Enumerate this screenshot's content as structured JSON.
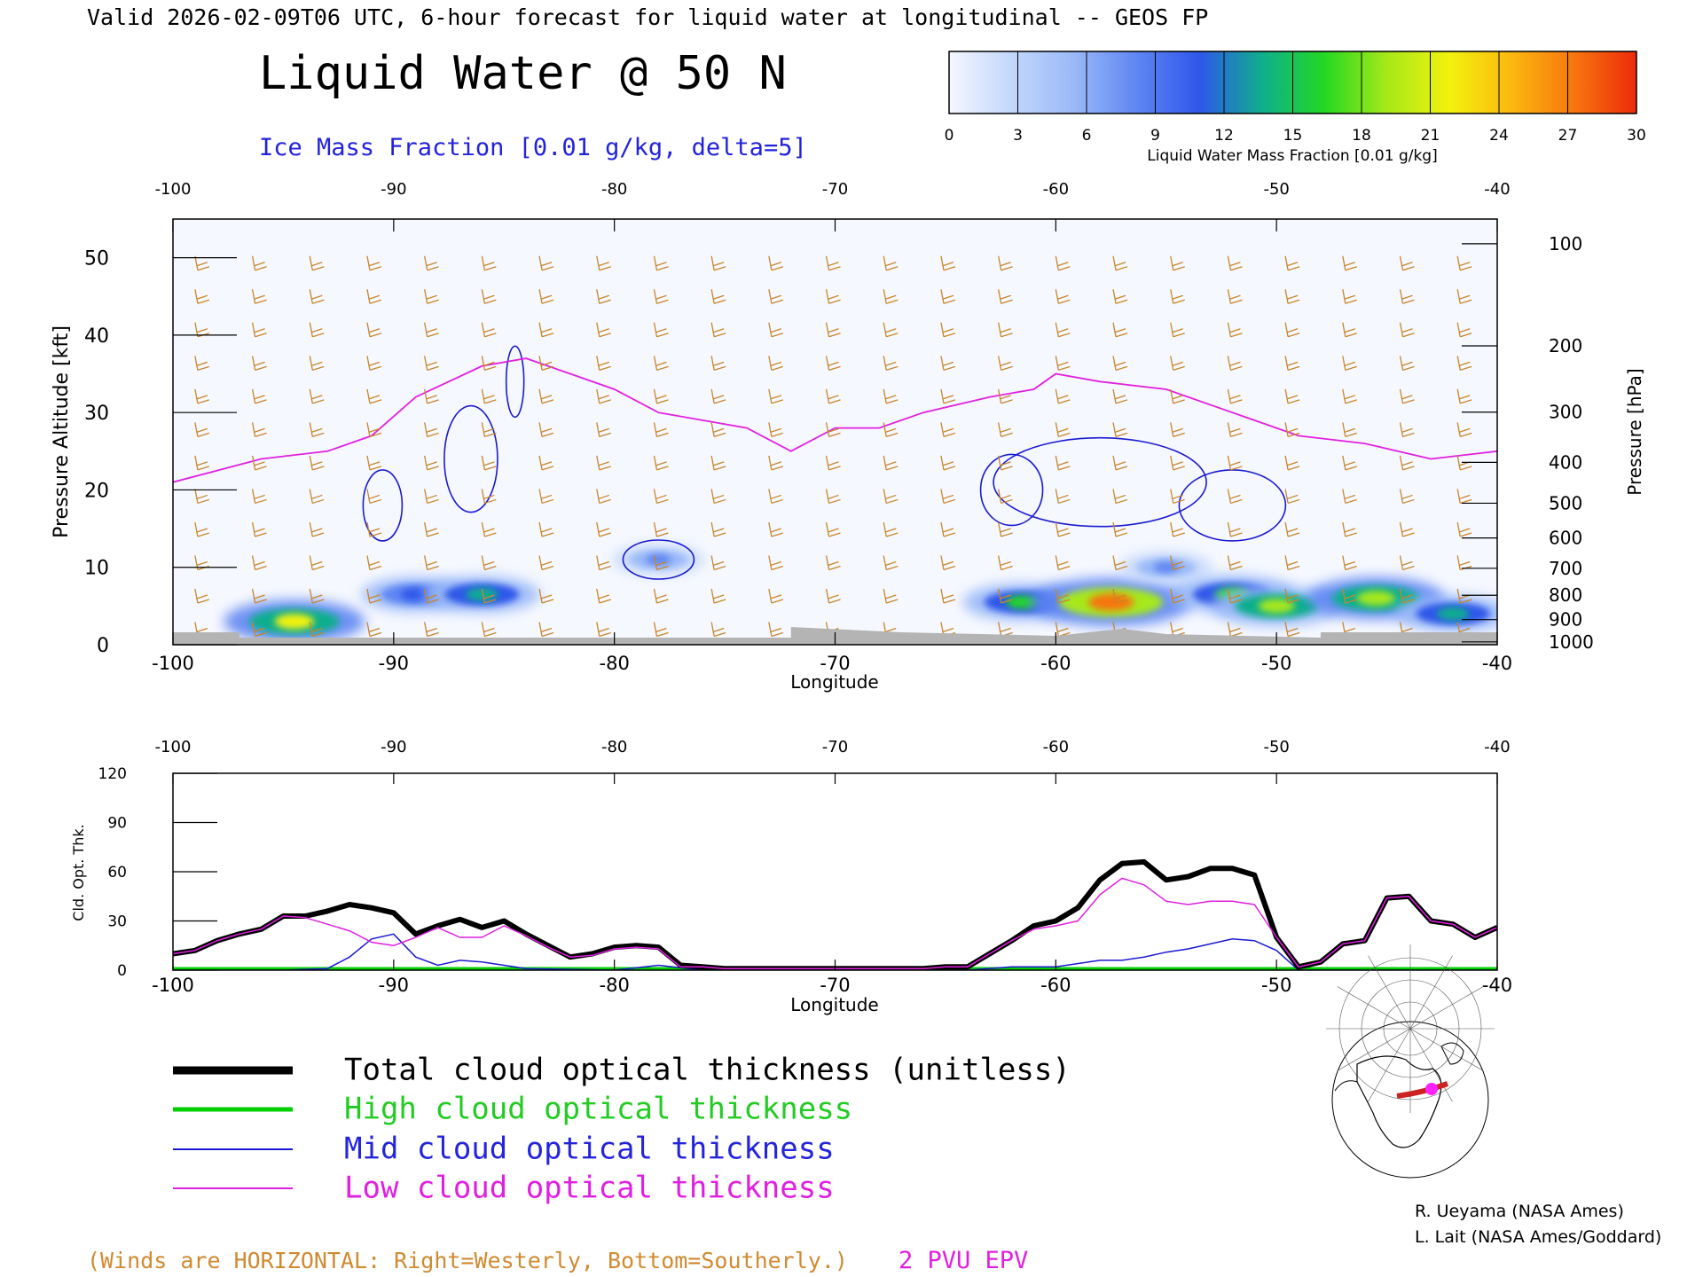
{
  "header": {
    "valid_line": "Valid 2026-02-09T06 UTC, 6-hour forecast for liquid water at longitudinal -- GEOS FP",
    "title": "Liquid Water @ 50 N",
    "subtitle": "Ice Mass Fraction [0.01 g/kg, delta=5]"
  },
  "colorbar": {
    "ticks": [
      "0",
      "3",
      "6",
      "9",
      "12",
      "15",
      "18",
      "21",
      "24",
      "27",
      "30"
    ],
    "label": "Liquid Water Mass Fraction [0.01 g/kg]"
  },
  "colors": {
    "liquid_water_scale": [
      "#f4f7ff",
      "#c3d7fb",
      "#9ab9f8",
      "#5f86f2",
      "#2f57ea",
      "#0fae8e",
      "#22d822",
      "#a6e81a",
      "#f2f20e",
      "#fbb80f",
      "#f6760e",
      "#ee2a0a"
    ],
    "total": "#000000",
    "high": "#00d000",
    "mid": "#1a1ad0",
    "low": "#e020e0",
    "wind_barbs": "#c8862a",
    "epv": "#e020e0",
    "ice_contour": "#1a1ad0",
    "terrain": "#b4b4b4"
  },
  "top_panel": {
    "xlabel": "Longitude",
    "ylabel_left": "Pressure Altitude [kft]",
    "ylabel_right": "Pressure [hPa]",
    "x_ticks": [
      "-100",
      "-90",
      "-80",
      "-70",
      "-60",
      "-50",
      "-40"
    ],
    "y_ticks_left": [
      "0",
      "10",
      "20",
      "30",
      "40",
      "50"
    ],
    "pressure_ticks": [
      "100",
      "200",
      "300",
      "400",
      "500",
      "600",
      "700",
      "800",
      "900",
      "1000"
    ]
  },
  "bottom_panel": {
    "xlabel": "Longitude",
    "ylabel": "Cld. Opt. Thk.",
    "x_ticks": [
      "-100",
      "-90",
      "-80",
      "-70",
      "-60",
      "-50",
      "-40"
    ],
    "y_ticks": [
      "0",
      "30",
      "60",
      "90",
      "120"
    ]
  },
  "legend": {
    "total": "Total cloud optical thickness (unitless)",
    "high": "High cloud optical thickness",
    "mid": "Mid cloud optical thickness",
    "low": "Low cloud optical thickness"
  },
  "credits": {
    "line1": "R. Ueyama (NASA Ames)",
    "line2": "L. Lait (NASA Ames/Goddard)"
  },
  "footer": {
    "winds_note": "(Winds are HORIZONTAL: Right=Westerly, Bottom=Southerly.)",
    "epv_label": "2 PVU EPV"
  },
  "chart_data": [
    {
      "type": "heatmap",
      "title": "Liquid Water @ 50 N",
      "xlabel": "Longitude",
      "ylabel": "Pressure Altitude [kft]",
      "xlim": [
        -100,
        -40
      ],
      "ylim": [
        0,
        55
      ],
      "value_range": [
        0,
        30
      ],
      "liquid_water_blobs": [
        {
          "lon": -94.5,
          "alt": 3.0,
          "value": 21
        },
        {
          "lon": -89.0,
          "alt": 6.5,
          "value": 12
        },
        {
          "lon": -86.0,
          "alt": 6.5,
          "value": 14
        },
        {
          "lon": -78.0,
          "alt": 11.0,
          "value": 7
        },
        {
          "lon": -61.5,
          "alt": 5.5,
          "value": 15
        },
        {
          "lon": -57.5,
          "alt": 5.5,
          "value": 27
        },
        {
          "lon": -55.0,
          "alt": 10.0,
          "value": 7
        },
        {
          "lon": -52.0,
          "alt": 6.5,
          "value": 16
        },
        {
          "lon": -50.0,
          "alt": 5.0,
          "value": 18
        },
        {
          "lon": -45.5,
          "alt": 6.0,
          "value": 20
        },
        {
          "lon": -42.0,
          "alt": 4.0,
          "value": 14
        }
      ],
      "epv_2pvu_alt": {
        "lon": [
          -100,
          -96,
          -93,
          -91,
          -89,
          -86,
          -84,
          -82,
          -80,
          -78,
          -74,
          -72,
          -70,
          -68,
          -66,
          -63,
          -61,
          -60,
          -58,
          -55,
          -52,
          -49,
          -46,
          -43,
          -40
        ],
        "alt": [
          21,
          24,
          25,
          27,
          32,
          36,
          37,
          35,
          33,
          30,
          28,
          25,
          28,
          28,
          30,
          32,
          33,
          35,
          34,
          33,
          30,
          27,
          26,
          24,
          25
        ]
      }
    },
    {
      "type": "line",
      "xlabel": "Longitude",
      "ylabel": "Cld. Opt. Thk.",
      "xlim": [
        -100,
        -40
      ],
      "ylim": [
        0,
        120
      ],
      "series": [
        {
          "name": "Total cloud optical thickness (unitless)",
          "x": [
            -100,
            -99,
            -98,
            -97,
            -96,
            -95,
            -94,
            -93,
            -92,
            -91,
            -90,
            -89,
            -88,
            -87,
            -86,
            -85,
            -84,
            -83,
            -82,
            -81,
            -80,
            -79,
            -78,
            -77,
            -76,
            -75,
            -74,
            -72,
            -70,
            -68,
            -66,
            -65,
            -64,
            -63,
            -62,
            -61,
            -60,
            -59,
            -58,
            -57,
            -56,
            -55,
            -54,
            -53,
            -52,
            -51,
            -50,
            -49,
            -48,
            -47,
            -46,
            -45,
            -44,
            -43,
            -42,
            -41,
            -40
          ],
          "y": [
            10,
            12,
            18,
            22,
            25,
            33,
            33,
            36,
            40,
            38,
            35,
            22,
            27,
            31,
            26,
            30,
            22,
            15,
            8,
            10,
            14,
            15,
            14,
            3,
            2,
            1,
            1,
            1,
            1,
            1,
            1,
            2,
            2,
            10,
            18,
            27,
            30,
            38,
            55,
            65,
            66,
            55,
            57,
            62,
            62,
            58,
            20,
            2,
            5,
            16,
            18,
            44,
            45,
            30,
            28,
            20,
            26
          ]
        },
        {
          "name": "High cloud optical thickness",
          "x": [
            -100,
            -90,
            -80,
            -70,
            -60,
            -50,
            -40
          ],
          "y": [
            0.8,
            0.8,
            0.8,
            0.8,
            0.8,
            0.8,
            0.8
          ]
        },
        {
          "name": "Mid cloud optical thickness",
          "x": [
            -100,
            -95,
            -93,
            -92,
            -91,
            -90,
            -89,
            -88,
            -87,
            -86,
            -85,
            -84,
            -80,
            -78,
            -76,
            -70,
            -64,
            -62,
            -60,
            -58,
            -57,
            -56,
            -55,
            -54,
            -53,
            -52,
            -51,
            -50,
            -49,
            -45,
            -40
          ],
          "y": [
            0,
            0,
            1,
            8,
            19,
            22,
            8,
            3,
            6,
            5,
            3,
            1,
            0,
            3,
            0,
            0,
            0,
            2,
            2,
            6,
            6,
            8,
            11,
            13,
            16,
            19,
            18,
            12,
            0,
            0,
            0
          ]
        },
        {
          "name": "Low cloud optical thickness",
          "x": [
            -100,
            -99,
            -98,
            -97,
            -96,
            -95,
            -94,
            -93,
            -92,
            -91,
            -90,
            -89,
            -88,
            -87,
            -86,
            -85,
            -84,
            -83,
            -82,
            -81,
            -80,
            -79,
            -78,
            -77,
            -76,
            -75,
            -74,
            -72,
            -70,
            -68,
            -66,
            -65,
            -64,
            -63,
            -62,
            -61,
            -60,
            -59,
            -58,
            -57,
            -56,
            -55,
            -54,
            -53,
            -52,
            -51,
            -50,
            -49,
            -48,
            -47,
            -46,
            -45,
            -44,
            -43,
            -42,
            -41,
            -40
          ],
          "y": [
            10,
            12,
            18,
            22,
            25,
            33,
            32,
            28,
            24,
            17,
            15,
            20,
            26,
            20,
            20,
            27,
            21,
            14,
            8,
            9,
            13,
            14,
            13,
            2,
            2,
            1,
            1,
            1,
            1,
            1,
            1,
            2,
            2,
            10,
            18,
            25,
            27,
            30,
            46,
            56,
            52,
            42,
            40,
            42,
            42,
            40,
            20,
            2,
            5,
            16,
            18,
            44,
            45,
            30,
            28,
            20,
            26
          ]
        }
      ]
    }
  ]
}
